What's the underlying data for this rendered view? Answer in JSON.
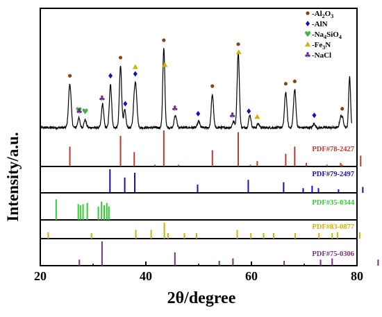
{
  "chart_data": {
    "type": "line",
    "xlabel": "2θ/degree",
    "ylabel": "Intensity/a.u.",
    "xlim": [
      20,
      80
    ],
    "xticks": [
      "20",
      "40",
      "60",
      "80"
    ],
    "grid": false,
    "legend_position": "top-right",
    "legend": [
      {
        "marker": "circle",
        "color": "#8B4513",
        "label": "Al₂O₃",
        "label_prefix": "-Al",
        "label_sub1": "2",
        "label_mid": "O",
        "label_sub2": "3"
      },
      {
        "marker": "diamond",
        "color": "#1010C8",
        "label": "AlN",
        "label_prefix": "-AlN"
      },
      {
        "marker": "heart",
        "color": "#3CB83C",
        "label": "Na₄SiO₄",
        "label_prefix": "-Na",
        "label_sub1": "4",
        "label_mid": "SiO",
        "label_sub2": "4"
      },
      {
        "marker": "triangle",
        "color": "#D4B000",
        "label": "Fe₃N",
        "label_prefix": "-Fe",
        "label_sub1": "3",
        "label_mid": "N"
      },
      {
        "marker": "club",
        "color": "#6A2C8C",
        "label": "NaCl",
        "label_prefix": "-NaCl"
      }
    ],
    "pattern": {
      "baseline": 0.2,
      "peaks": [
        {
          "x": 25.6,
          "h": 0.55,
          "w": 0.35
        },
        {
          "x": 27.3,
          "h": 0.12,
          "w": 0.3
        },
        {
          "x": 28.5,
          "h": 0.1,
          "w": 0.3
        },
        {
          "x": 31.8,
          "h": 0.3,
          "w": 0.3
        },
        {
          "x": 33.3,
          "h": 0.55,
          "w": 0.3
        },
        {
          "x": 35.2,
          "h": 0.78,
          "w": 0.3
        },
        {
          "x": 36.0,
          "h": 0.22,
          "w": 0.3
        },
        {
          "x": 37.9,
          "h": 0.45,
          "w": 0.35
        },
        {
          "x": 38.2,
          "h": 0.25,
          "w": 0.3
        },
        {
          "x": 43.4,
          "h": 1.0,
          "w": 0.28
        },
        {
          "x": 45.6,
          "h": 0.15,
          "w": 0.35
        },
        {
          "x": 50.0,
          "h": 0.08,
          "w": 0.3
        },
        {
          "x": 52.6,
          "h": 0.42,
          "w": 0.3
        },
        {
          "x": 56.6,
          "h": 0.08,
          "w": 0.3
        },
        {
          "x": 57.5,
          "h": 0.95,
          "w": 0.3
        },
        {
          "x": 59.7,
          "h": 0.16,
          "w": 0.3
        },
        {
          "x": 61.3,
          "h": 0.05,
          "w": 0.3
        },
        {
          "x": 66.5,
          "h": 0.45,
          "w": 0.32
        },
        {
          "x": 68.2,
          "h": 0.48,
          "w": 0.32
        },
        {
          "x": 71.9,
          "h": 0.05,
          "w": 0.3
        },
        {
          "x": 76.9,
          "h": 0.12,
          "w": 0.3
        },
        {
          "x": 77.3,
          "h": 0.1,
          "w": 0.3
        },
        {
          "x": 78.6,
          "h": 0.65,
          "w": 0.25
        }
      ]
    },
    "markers": [
      {
        "phase": "Al2O3",
        "x": 25.6
      },
      {
        "phase": "Al2O3",
        "x": 35.2
      },
      {
        "phase": "Al2O3",
        "x": 43.4
      },
      {
        "phase": "Al2O3",
        "x": 52.6
      },
      {
        "phase": "Al2O3",
        "x": 57.5
      },
      {
        "phase": "Al2O3",
        "x": 66.5
      },
      {
        "phase": "Al2O3",
        "x": 68.2
      },
      {
        "phase": "Al2O3",
        "x": 77.2
      },
      {
        "phase": "AlN",
        "x": 33.3
      },
      {
        "phase": "AlN",
        "x": 36.1
      },
      {
        "phase": "AlN",
        "x": 38.0
      },
      {
        "phase": "AlN",
        "x": 49.9
      },
      {
        "phase": "AlN",
        "x": 59.5
      },
      {
        "phase": "AlN",
        "x": 71.9
      },
      {
        "phase": "Na4SiO4",
        "x": 27.3
      },
      {
        "phase": "Na4SiO4",
        "x": 28.5
      },
      {
        "phase": "Fe3N",
        "x": 38.0
      },
      {
        "phase": "Fe3N",
        "x": 43.6
      },
      {
        "phase": "Fe3N",
        "x": 57.6
      },
      {
        "phase": "Fe3N",
        "x": 61.1
      },
      {
        "phase": "NaCl",
        "x": 27.4
      },
      {
        "phase": "NaCl",
        "x": 31.7
      },
      {
        "phase": "NaCl",
        "x": 45.5
      },
      {
        "phase": "NaCl",
        "x": 56.4
      }
    ],
    "references": [
      {
        "pdf": "PDF#78-2427",
        "color": "#C0392B",
        "phase": "Al2O3",
        "lines": [
          [
            25.6,
            0.55
          ],
          [
            35.2,
            0.85
          ],
          [
            37.8,
            0.4
          ],
          [
            41.7,
            0.05
          ],
          [
            43.4,
            1.0
          ],
          [
            46.2,
            0.05
          ],
          [
            52.6,
            0.45
          ],
          [
            57.5,
            0.95
          ],
          [
            59.8,
            0.05
          ],
          [
            61.1,
            0.15
          ],
          [
            66.5,
            0.35
          ],
          [
            68.2,
            0.55
          ],
          [
            70.4,
            0.1
          ],
          [
            74.3,
            0.05
          ],
          [
            76.9,
            0.1
          ],
          [
            77.2,
            0.05
          ],
          [
            80.7,
            0.3
          ]
        ]
      },
      {
        "pdf": "PDF#79-2497",
        "color": "#1010C8",
        "phase": "AlN",
        "lines": [
          [
            33.2,
            1.0
          ],
          [
            36.0,
            0.65
          ],
          [
            37.9,
            0.85
          ],
          [
            49.8,
            0.35
          ],
          [
            59.4,
            0.55
          ],
          [
            66.1,
            0.45
          ],
          [
            69.8,
            0.2
          ],
          [
            71.5,
            0.3
          ],
          [
            72.7,
            0.2
          ],
          [
            76.5,
            0.15
          ],
          [
            81.1,
            0.25
          ]
        ]
      },
      {
        "pdf": "PDF#35-0344",
        "color": "#2DD02D",
        "phase": "Na4SiO4",
        "lines": [
          [
            23.0,
            0.85
          ],
          [
            27.2,
            0.65
          ],
          [
            27.6,
            0.6
          ],
          [
            28.1,
            0.65
          ],
          [
            28.9,
            0.7
          ],
          [
            31.0,
            0.55
          ],
          [
            31.6,
            0.75
          ],
          [
            32.1,
            0.6
          ],
          [
            32.6,
            0.7
          ],
          [
            33.0,
            0.55
          ]
        ]
      },
      {
        "pdf": "PDF#83-0877",
        "color": "#D4B000",
        "phase": "Fe3N",
        "lines": [
          [
            21.5,
            0.4
          ],
          [
            29.7,
            0.35
          ],
          [
            38.1,
            0.55
          ],
          [
            41.0,
            0.55
          ],
          [
            43.5,
            1.0
          ],
          [
            44.2,
            0.35
          ],
          [
            47.3,
            0.35
          ],
          [
            49.6,
            0.35
          ],
          [
            57.3,
            0.55
          ],
          [
            59.9,
            0.35
          ],
          [
            62.3,
            0.35
          ],
          [
            64.2,
            0.35
          ],
          [
            68.3,
            0.35
          ],
          [
            72.8,
            0.35
          ],
          [
            75.3,
            0.35
          ],
          [
            76.3,
            0.4
          ],
          [
            80.5,
            0.4
          ]
        ]
      },
      {
        "pdf": "PDF#75-0306",
        "color": "#7B2D84",
        "phase": "NaCl",
        "lines": [
          [
            27.4,
            0.25
          ],
          [
            31.7,
            1.0
          ],
          [
            45.5,
            0.55
          ],
          [
            53.9,
            0.2
          ],
          [
            56.5,
            0.3
          ],
          [
            66.2,
            0.2
          ],
          [
            73.1,
            0.25
          ],
          [
            75.3,
            0.3
          ],
          [
            84.0,
            0.25
          ]
        ]
      }
    ]
  }
}
